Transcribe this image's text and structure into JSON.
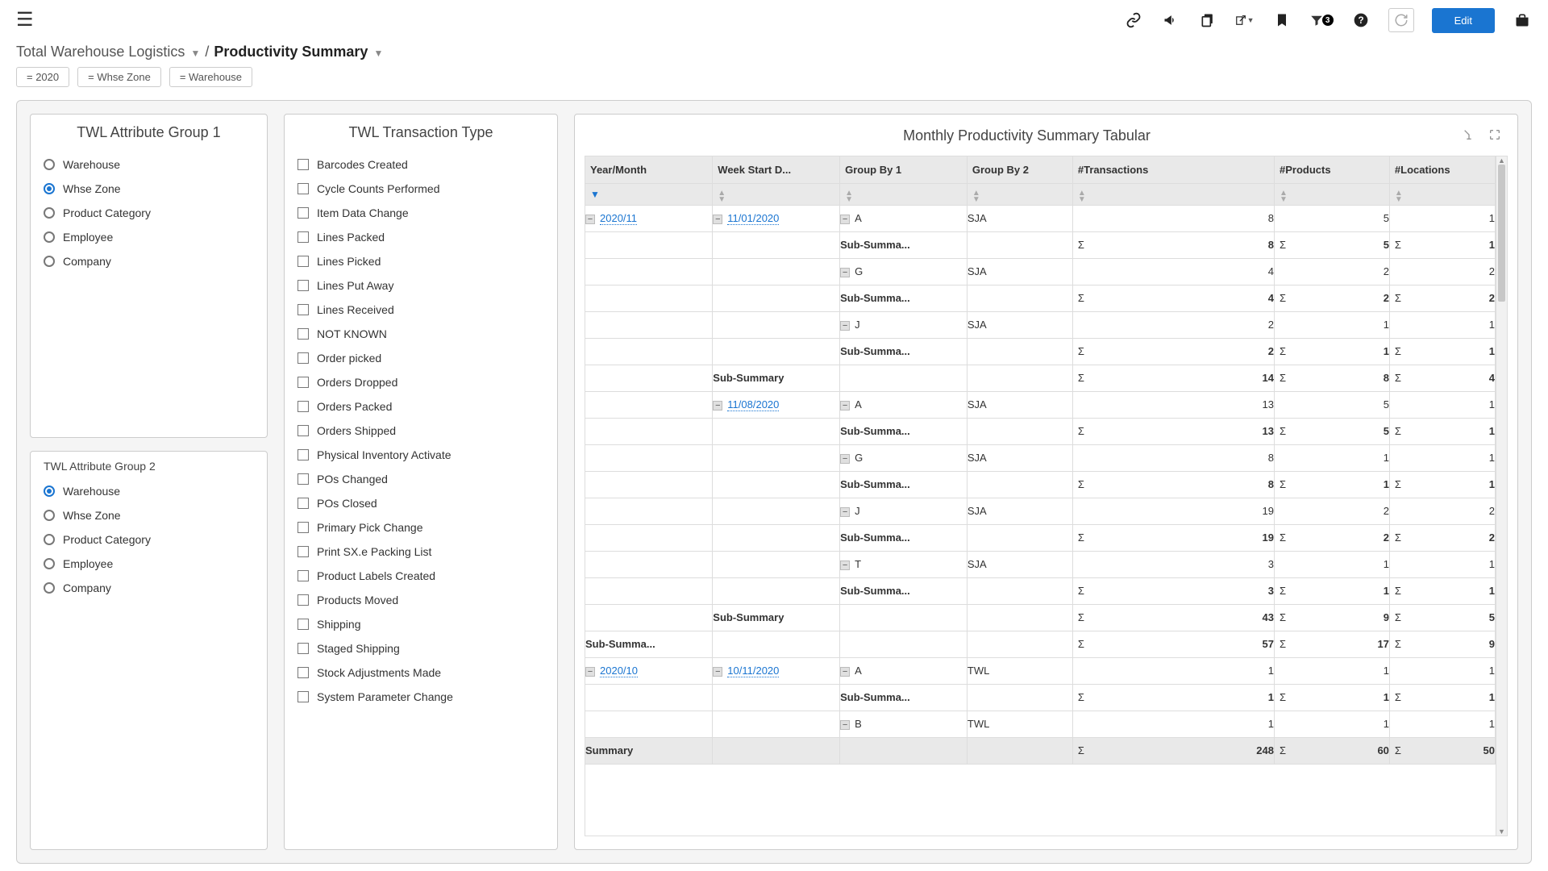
{
  "toolbar": {
    "filter_count": "3",
    "edit_label": "Edit"
  },
  "breadcrumb": {
    "root": "Total Warehouse Logistics",
    "separator": "/",
    "current": "Productivity Summary"
  },
  "filters": {
    "pills": [
      "= 2020",
      "= Whse Zone",
      "= Warehouse"
    ]
  },
  "attr_group_1": {
    "title": "TWL Attribute Group 1",
    "options": [
      "Warehouse",
      "Whse Zone",
      "Product Category",
      "Employee",
      "Company"
    ],
    "selected": "Whse Zone"
  },
  "attr_group_2": {
    "title": "TWL Attribute Group 2",
    "options": [
      "Warehouse",
      "Whse Zone",
      "Product Category",
      "Employee",
      "Company"
    ],
    "selected": "Warehouse"
  },
  "transaction_type": {
    "title": "TWL Transaction Type",
    "options": [
      "Barcodes Created",
      "Cycle Counts Performed",
      "Item Data Change",
      "Lines Packed",
      "Lines Picked",
      "Lines Put Away",
      "Lines Received",
      "NOT KNOWN",
      "Order picked",
      "Orders Dropped",
      "Orders Packed",
      "Orders Shipped",
      "Physical Inventory Activate",
      "POs Changed",
      "POs Closed",
      "Primary Pick Change",
      "Print SX.e Packing List",
      "Product Labels Created",
      "Products Moved",
      "Shipping",
      "Staged Shipping",
      "Stock Adjustments Made",
      "System Parameter Change"
    ]
  },
  "table": {
    "title": "Monthly Productivity Summary Tabular",
    "columns": [
      "Year/Month",
      "Week Start D...",
      "Group By 1",
      "Group By 2",
      "#Transactions",
      "#Products",
      "#Locations"
    ],
    "rows": [
      {
        "ym": "2020/11",
        "ymHandle": true,
        "wsd": "11/01/2020",
        "wsdHandle": true,
        "g1": "A",
        "g1Handle": true,
        "g2": "SJA",
        "tx": "8",
        "pr": "5",
        "loc": "1"
      },
      {
        "g1": "Sub-Summa...",
        "sub": true,
        "tx": "8",
        "pr": "5",
        "loc": "1",
        "sigma": true
      },
      {
        "g1": "G",
        "g1Handle": true,
        "g2": "SJA",
        "tx": "4",
        "pr": "2",
        "loc": "2"
      },
      {
        "g1": "Sub-Summa...",
        "sub": true,
        "tx": "4",
        "pr": "2",
        "loc": "2",
        "sigma": true
      },
      {
        "g1": "J",
        "g1Handle": true,
        "g2": "SJA",
        "tx": "2",
        "pr": "1",
        "loc": "1"
      },
      {
        "g1": "Sub-Summa...",
        "sub": true,
        "tx": "2",
        "pr": "1",
        "loc": "1",
        "sigma": true
      },
      {
        "wsd": "Sub-Summary",
        "wsdPlain": true,
        "sub": true,
        "tx": "14",
        "pr": "8",
        "loc": "4",
        "sigma": true
      },
      {
        "wsd": "11/08/2020",
        "wsdHandle": true,
        "g1": "A",
        "g1Handle": true,
        "g2": "SJA",
        "tx": "13",
        "pr": "5",
        "loc": "1"
      },
      {
        "g1": "Sub-Summa...",
        "sub": true,
        "tx": "13",
        "pr": "5",
        "loc": "1",
        "sigma": true
      },
      {
        "g1": "G",
        "g1Handle": true,
        "g2": "SJA",
        "tx": "8",
        "pr": "1",
        "loc": "1"
      },
      {
        "g1": "Sub-Summa...",
        "sub": true,
        "tx": "8",
        "pr": "1",
        "loc": "1",
        "sigma": true
      },
      {
        "g1": "J",
        "g1Handle": true,
        "g2": "SJA",
        "tx": "19",
        "pr": "2",
        "loc": "2"
      },
      {
        "g1": "Sub-Summa...",
        "sub": true,
        "tx": "19",
        "pr": "2",
        "loc": "2",
        "sigma": true
      },
      {
        "g1": "T",
        "g1Handle": true,
        "g2": "SJA",
        "tx": "3",
        "pr": "1",
        "loc": "1"
      },
      {
        "g1": "Sub-Summa...",
        "sub": true,
        "tx": "3",
        "pr": "1",
        "loc": "1",
        "sigma": true
      },
      {
        "wsd": "Sub-Summary",
        "wsdPlain": true,
        "sub": true,
        "tx": "43",
        "pr": "9",
        "loc": "5",
        "sigma": true
      },
      {
        "ym": "Sub-Summa...",
        "ymPlain": true,
        "sub": true,
        "tx": "57",
        "pr": "17",
        "loc": "9",
        "sigma": true
      },
      {
        "ym": "2020/10",
        "ymHandle": true,
        "wsd": "10/11/2020",
        "wsdHandle": true,
        "g1": "A",
        "g1Handle": true,
        "g2": "TWL",
        "tx": "1",
        "pr": "1",
        "loc": "1"
      },
      {
        "g1": "Sub-Summa...",
        "sub": true,
        "tx": "1",
        "pr": "1",
        "loc": "1",
        "sigma": true
      },
      {
        "g1": "B",
        "g1Handle": true,
        "g2": "TWL",
        "tx": "1",
        "pr": "1",
        "loc": "1"
      }
    ],
    "summary": {
      "label": "Summary",
      "tx": "248",
      "pr": "60",
      "loc": "50"
    }
  },
  "colors": {
    "accent": "#1a75d1",
    "header_bg": "#e9e9e9",
    "border": "#cccccc",
    "page_bg": "#f5f5f5"
  }
}
